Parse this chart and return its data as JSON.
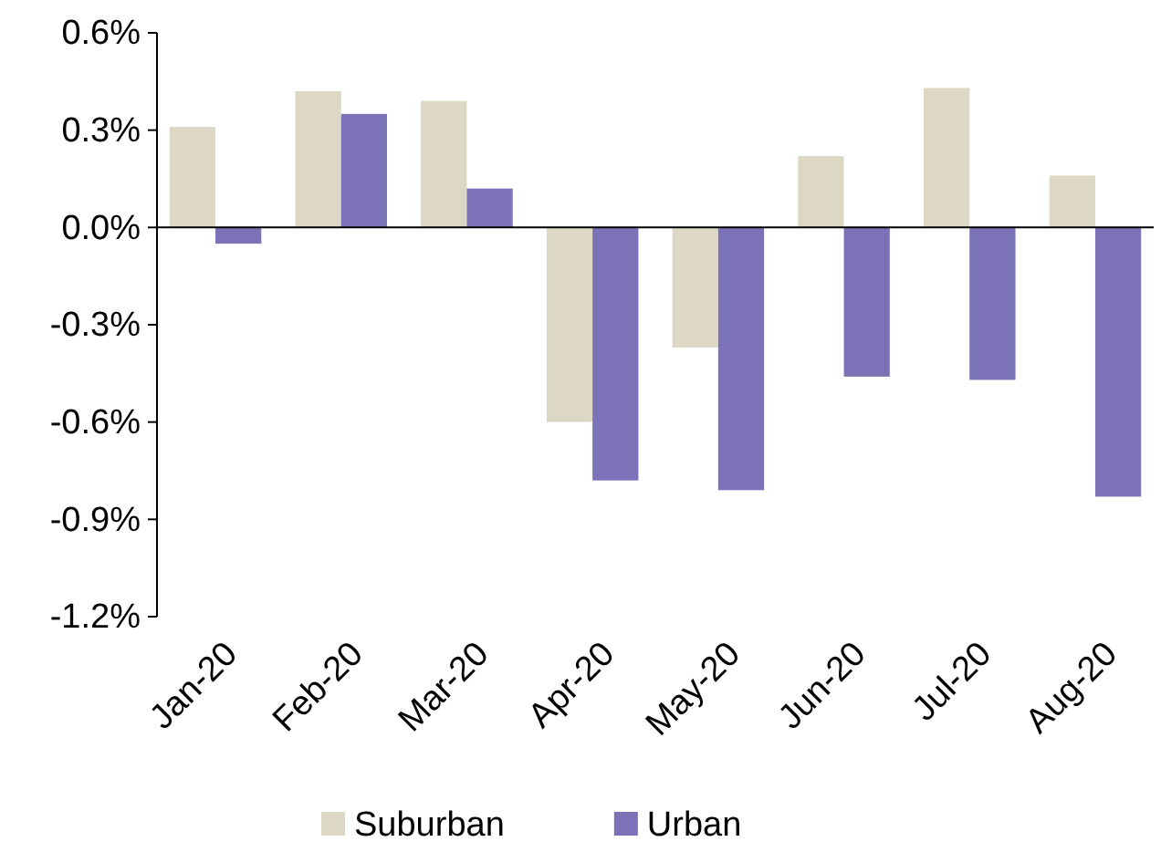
{
  "chart_data": {
    "type": "bar",
    "categories": [
      "Jan-20",
      "Feb-20",
      "Mar-20",
      "Apr-20",
      "May-20",
      "Jun-20",
      "Jul-20",
      "Aug-20"
    ],
    "series": [
      {
        "name": "Suburban",
        "color": "#ddd8c6",
        "values": [
          0.31,
          0.42,
          0.39,
          -0.6,
          -0.37,
          0.22,
          0.43,
          0.16
        ]
      },
      {
        "name": "Urban",
        "color": "#7b72b8",
        "values": [
          -0.05,
          0.35,
          0.12,
          -0.78,
          -0.81,
          -0.46,
          -0.47,
          -0.83
        ]
      }
    ],
    "ylim": [
      -1.2,
      0.6
    ],
    "yticks": [
      {
        "value": 0.6,
        "label": "0.6%"
      },
      {
        "value": 0.3,
        "label": "0.3%"
      },
      {
        "value": 0,
        "label": "0.0%"
      },
      {
        "value": -0.3,
        "label": "-0.3%"
      },
      {
        "value": -0.6,
        "label": "-0.6%"
      },
      {
        "value": -0.9,
        "label": "-0.9%"
      },
      {
        "value": -1.2,
        "label": "-1.2%"
      }
    ],
    "legend": "bottom"
  }
}
